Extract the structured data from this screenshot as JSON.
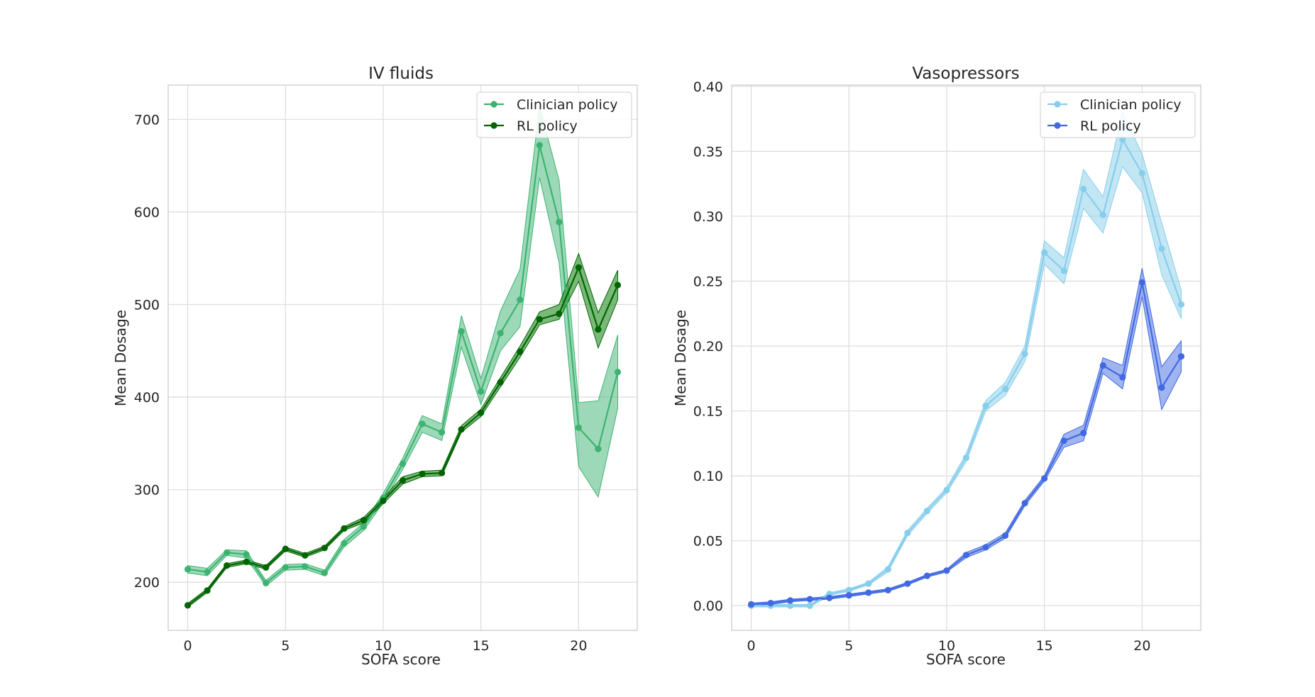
{
  "chart_data": [
    {
      "type": "line",
      "title": "IV fluids",
      "xlabel": "SOFA score",
      "ylabel": "Mean Dosage",
      "xlim": [
        -1,
        23
      ],
      "ylim": [
        148,
        737
      ],
      "xticks": [
        0,
        5,
        10,
        15,
        20
      ],
      "yticks": [
        200,
        300,
        400,
        500,
        600,
        700
      ],
      "xtick_labels": [
        "0",
        "5",
        "10",
        "15",
        "20"
      ],
      "ytick_labels": [
        "200",
        "300",
        "400",
        "500",
        "600",
        "700"
      ],
      "grid": true,
      "legend_position": "top-right",
      "x": [
        0,
        1,
        2,
        3,
        4,
        5,
        6,
        7,
        8,
        9,
        10,
        11,
        12,
        13,
        14,
        15,
        16,
        17,
        18,
        19,
        20,
        21,
        22
      ],
      "series": [
        {
          "name": "Clinician policy",
          "color": "#3cb371",
          "band_color": "#3cb371",
          "band_opacity": 0.5,
          "values": [
            214,
            211,
            232,
            230,
            199,
            216,
            217,
            210,
            242,
            260,
            291,
            328,
            371,
            362,
            471,
            406,
            469,
            505,
            672,
            589,
            367,
            344,
            427
          ],
          "lower": [
            210,
            207,
            229,
            226,
            196,
            213,
            214,
            207,
            238,
            256,
            286,
            322,
            362,
            353,
            454,
            392,
            450,
            476,
            637,
            545,
            325,
            292,
            388
          ],
          "upper": [
            218,
            215,
            235,
            234,
            202,
            219,
            220,
            213,
            246,
            264,
            296,
            334,
            380,
            371,
            488,
            420,
            493,
            538,
            714,
            634,
            394,
            396,
            467
          ]
        },
        {
          "name": "RL policy",
          "color": "#006400",
          "band_color": "#228b22",
          "band_opacity": 0.6,
          "values": [
            175,
            191,
            218,
            222,
            216,
            236,
            229,
            237,
            258,
            267,
            288,
            310,
            317,
            318,
            365,
            383,
            416,
            449,
            484,
            490,
            540,
            473,
            521
          ],
          "lower": [
            173,
            189,
            216,
            220,
            214,
            234,
            227,
            235,
            256,
            264,
            285,
            306,
            314,
            315,
            362,
            379,
            411,
            443,
            478,
            484,
            525,
            453,
            505
          ],
          "upper": [
            177,
            193,
            220,
            224,
            218,
            238,
            231,
            239,
            260,
            270,
            291,
            314,
            320,
            321,
            369,
            387,
            421,
            455,
            492,
            500,
            555,
            491,
            537
          ]
        }
      ]
    },
    {
      "type": "line",
      "title": "Vasopressors",
      "xlabel": "SOFA score",
      "ylabel": "Mean Dosage",
      "xlim": [
        -1,
        23
      ],
      "ylim": [
        -0.019,
        0.401
      ],
      "xticks": [
        0,
        5,
        10,
        15,
        20
      ],
      "yticks": [
        0.0,
        0.05,
        0.1,
        0.15,
        0.2,
        0.25,
        0.3,
        0.35,
        0.4
      ],
      "xtick_labels": [
        "0",
        "5",
        "10",
        "15",
        "20"
      ],
      "ytick_labels": [
        "0.00",
        "0.05",
        "0.10",
        "0.15",
        "0.20",
        "0.25",
        "0.30",
        "0.35",
        "0.40"
      ],
      "grid": true,
      "legend_position": "top-right",
      "x": [
        0,
        1,
        2,
        3,
        4,
        5,
        6,
        7,
        8,
        9,
        10,
        11,
        12,
        13,
        14,
        15,
        16,
        17,
        18,
        19,
        20,
        21,
        22
      ],
      "series": [
        {
          "name": "Clinician policy",
          "color": "#87ceeb",
          "band_color": "#87ceeb",
          "band_opacity": 0.5,
          "values": [
            0.0,
            0.0,
            0.0,
            0.0,
            0.009,
            0.012,
            0.017,
            0.028,
            0.056,
            0.073,
            0.089,
            0.114,
            0.154,
            0.167,
            0.194,
            0.272,
            0.258,
            0.321,
            0.301,
            0.359,
            0.333,
            0.275,
            0.232
          ],
          "lower": [
            -0.001,
            -0.001,
            -0.001,
            -0.001,
            0.008,
            0.011,
            0.016,
            0.026,
            0.054,
            0.071,
            0.087,
            0.111,
            0.15,
            0.162,
            0.188,
            0.263,
            0.248,
            0.306,
            0.287,
            0.338,
            0.318,
            0.255,
            0.221
          ],
          "upper": [
            0.001,
            0.001,
            0.001,
            0.001,
            0.01,
            0.013,
            0.018,
            0.03,
            0.058,
            0.075,
            0.091,
            0.117,
            0.158,
            0.172,
            0.2,
            0.281,
            0.268,
            0.336,
            0.315,
            0.38,
            0.348,
            0.295,
            0.243
          ]
        },
        {
          "name": "RL policy",
          "color": "#4169e1",
          "band_color": "#4169e1",
          "band_opacity": 0.5,
          "values": [
            0.001,
            0.002,
            0.004,
            0.005,
            0.006,
            0.008,
            0.01,
            0.012,
            0.017,
            0.023,
            0.027,
            0.039,
            0.045,
            0.054,
            0.079,
            0.098,
            0.127,
            0.133,
            0.185,
            0.176,
            0.249,
            0.168,
            0.192
          ],
          "lower": [
            0.0,
            0.001,
            0.003,
            0.004,
            0.005,
            0.007,
            0.009,
            0.011,
            0.016,
            0.022,
            0.026,
            0.037,
            0.043,
            0.052,
            0.077,
            0.096,
            0.122,
            0.127,
            0.179,
            0.167,
            0.238,
            0.151,
            0.18
          ],
          "upper": [
            0.002,
            0.003,
            0.005,
            0.006,
            0.007,
            0.009,
            0.011,
            0.013,
            0.018,
            0.024,
            0.028,
            0.041,
            0.047,
            0.056,
            0.081,
            0.1,
            0.132,
            0.139,
            0.191,
            0.185,
            0.26,
            0.184,
            0.204
          ]
        }
      ]
    }
  ]
}
